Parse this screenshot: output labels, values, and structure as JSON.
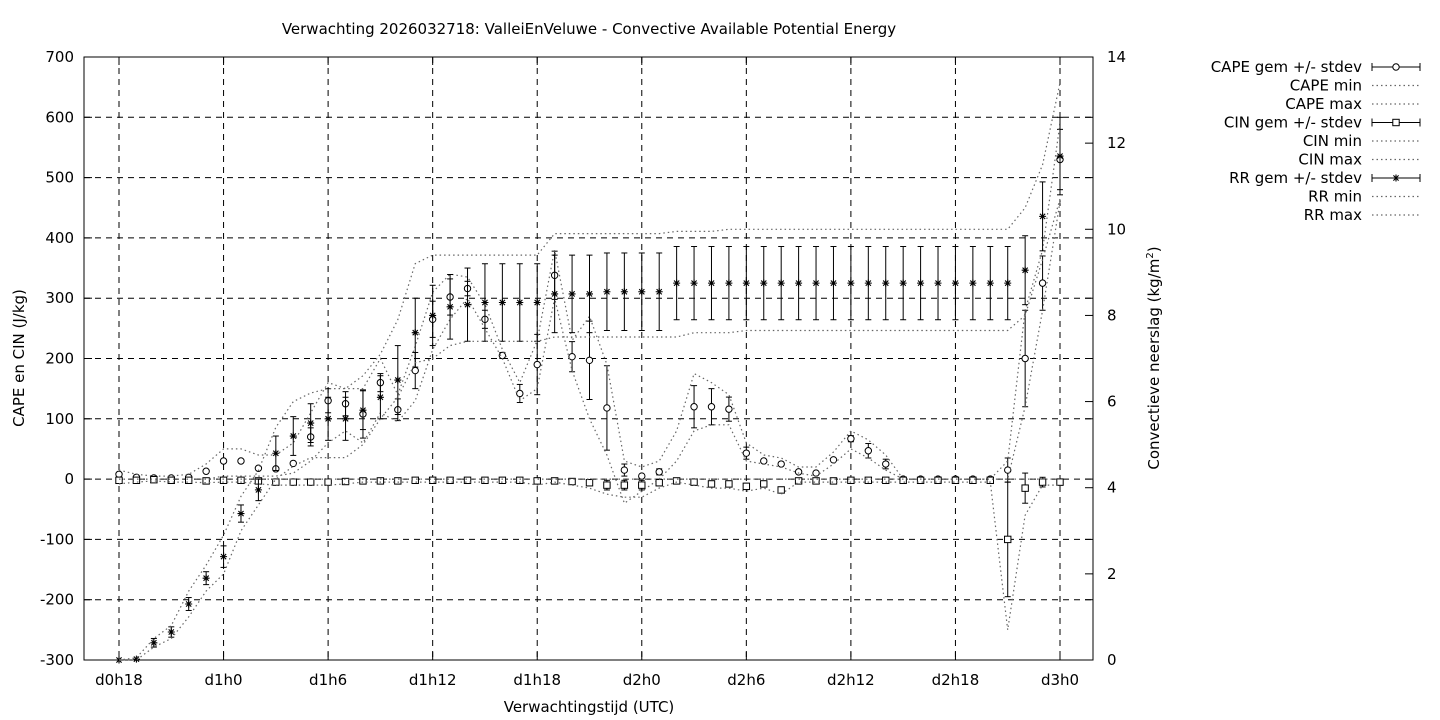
{
  "chart_data": {
    "type": "line",
    "title": "Verwachting 2026032718: ValleiEnVeluwe - Convective Available Potential Energy",
    "xlabel": "Verwachtingstijd (UTC)",
    "ylabel": "CAPE en CIN (J/kg)",
    "y2label": "Convectieve neerslag (kg/m",
    "y2label_sup": "2",
    "y2label_end": ")",
    "xlim": [
      0,
      57
    ],
    "ylim": [
      -300,
      700
    ],
    "y2lim": [
      0,
      14
    ],
    "grid": true,
    "legend_position": "outside-right",
    "x_ticks": [
      {
        "x": 0,
        "label": "d0h18"
      },
      {
        "x": 6,
        "label": "d1h0"
      },
      {
        "x": 12,
        "label": "d1h6"
      },
      {
        "x": 18,
        "label": "d1h12"
      },
      {
        "x": 24,
        "label": "d1h18"
      },
      {
        "x": 30,
        "label": "d2h0"
      },
      {
        "x": 36,
        "label": "d2h6"
      },
      {
        "x": 42,
        "label": "d2h12"
      },
      {
        "x": 48,
        "label": "d2h18"
      },
      {
        "x": 54,
        "label": "d3h0"
      }
    ],
    "y_ticks": [
      "-300",
      "-200",
      "-100",
      "0",
      "100",
      "200",
      "300",
      "400",
      "500",
      "600",
      "700"
    ],
    "y2_ticks": [
      "0",
      "2",
      "4",
      "6",
      "8",
      "10",
      "12",
      "14"
    ],
    "x": [
      0,
      1,
      2,
      3,
      4,
      5,
      6,
      7,
      8,
      9,
      10,
      11,
      12,
      13,
      14,
      15,
      16,
      17,
      18,
      19,
      20,
      21,
      22,
      23,
      24,
      25,
      26,
      27,
      28,
      29,
      30,
      31,
      32,
      33,
      34,
      35,
      36,
      37,
      38,
      39,
      40,
      41,
      42,
      43,
      44,
      45,
      46,
      47,
      48,
      49,
      50,
      51,
      52,
      53,
      54
    ],
    "series": [
      {
        "name": "CAPE gem +/- stdev",
        "marker": "circle",
        "axis": "y",
        "values": [
          8,
          3,
          2,
          2,
          3,
          13,
          30,
          30,
          18,
          17,
          26,
          70,
          130,
          125,
          108,
          160,
          115,
          180,
          265,
          302,
          316,
          265,
          205,
          142,
          190,
          338,
          203,
          197,
          118,
          15,
          5,
          12,
          null,
          120,
          120,
          116,
          43,
          30,
          25,
          12,
          10,
          32,
          67,
          47,
          25,
          0,
          0,
          0,
          0,
          0,
          0,
          15,
          200,
          325,
          530
        ],
        "stdev": [
          0,
          0,
          0,
          0,
          0,
          0,
          0,
          0,
          0,
          0,
          0,
          15,
          20,
          20,
          40,
          15,
          18,
          30,
          30,
          30,
          12,
          15,
          5,
          15,
          50,
          40,
          25,
          65,
          70,
          10,
          0,
          5,
          null,
          35,
          30,
          20,
          10,
          0,
          0,
          0,
          0,
          0,
          5,
          12,
          8,
          0,
          0,
          0,
          0,
          0,
          0,
          20,
          80,
          45,
          50
        ]
      },
      {
        "name": "CAPE min",
        "style": "dotted",
        "axis": "y",
        "values": [
          0,
          0,
          0,
          0,
          0,
          0,
          5,
          5,
          5,
          5,
          10,
          30,
          60,
          80,
          60,
          110,
          95,
          130,
          215,
          265,
          300,
          250,
          200,
          130,
          150,
          300,
          180,
          100,
          40,
          -40,
          -20,
          0,
          30,
          80,
          90,
          90,
          30,
          25,
          20,
          10,
          5,
          25,
          50,
          35,
          15,
          0,
          0,
          0,
          0,
          0,
          0,
          0,
          120,
          280,
          460
        ]
      },
      {
        "name": "CAPE max",
        "style": "dotted",
        "axis": "y",
        "values": [
          15,
          8,
          5,
          5,
          8,
          25,
          50,
          50,
          40,
          40,
          60,
          110,
          160,
          150,
          150,
          200,
          140,
          220,
          310,
          340,
          335,
          290,
          215,
          160,
          230,
          380,
          230,
          270,
          190,
          30,
          20,
          30,
          80,
          175,
          160,
          140,
          60,
          40,
          35,
          20,
          20,
          45,
          80,
          65,
          40,
          0,
          0,
          0,
          0,
          0,
          0,
          30,
          280,
          380,
          590
        ]
      },
      {
        "name": "CIN gem +/- stdev",
        "marker": "square",
        "axis": "y",
        "values": [
          -2,
          -2,
          -1,
          -2,
          -2,
          -3,
          -2,
          -2,
          -3,
          -5,
          -5,
          -5,
          -5,
          -4,
          -3,
          -3,
          -3,
          -2,
          -2,
          -2,
          -2,
          -2,
          -2,
          -2,
          -3,
          -3,
          -4,
          -6,
          -10,
          -10,
          -10,
          -6,
          -3,
          -5,
          -8,
          -8,
          -12,
          -8,
          -18,
          -3,
          -3,
          -3,
          -2,
          -2,
          -2,
          -2,
          -2,
          -2,
          -2,
          -2,
          -2,
          -100,
          -15,
          -5,
          -5
        ],
        "stdev": [
          0,
          0,
          0,
          0,
          0,
          0,
          0,
          0,
          0,
          0,
          0,
          0,
          0,
          0,
          0,
          0,
          0,
          0,
          0,
          0,
          0,
          0,
          0,
          0,
          5,
          0,
          0,
          5,
          8,
          8,
          8,
          5,
          0,
          5,
          5,
          5,
          5,
          5,
          5,
          0,
          0,
          0,
          0,
          0,
          0,
          0,
          0,
          0,
          0,
          0,
          0,
          95,
          25,
          8,
          5
        ]
      },
      {
        "name": "CIN min",
        "style": "dotted",
        "axis": "y",
        "values": [
          -8,
          -5,
          -3,
          -5,
          -5,
          -6,
          -5,
          -5,
          -8,
          -10,
          -10,
          -10,
          -10,
          -8,
          -5,
          -5,
          -5,
          -5,
          -5,
          -5,
          -5,
          -5,
          -5,
          -5,
          -10,
          -5,
          -10,
          -15,
          -25,
          -30,
          -30,
          -15,
          -5,
          -10,
          -15,
          -15,
          -20,
          -15,
          -25,
          -5,
          -5,
          -5,
          -5,
          -5,
          -5,
          -5,
          -5,
          -5,
          -5,
          -5,
          -5,
          -250,
          -60,
          -10,
          -10
        ]
      },
      {
        "name": "CIN max",
        "style": "dotted",
        "axis": "y",
        "values": [
          0,
          0,
          0,
          0,
          0,
          0,
          0,
          0,
          0,
          0,
          0,
          0,
          0,
          0,
          0,
          0,
          0,
          0,
          0,
          0,
          0,
          0,
          0,
          0,
          0,
          0,
          0,
          0,
          0,
          0,
          0,
          0,
          0,
          0,
          0,
          0,
          0,
          0,
          0,
          0,
          0,
          0,
          0,
          0,
          0,
          0,
          0,
          0,
          0,
          0,
          0,
          0,
          0,
          0,
          0
        ]
      },
      {
        "name": "RR gem +/- stdev",
        "marker": "star",
        "axis": "y2",
        "values": [
          0,
          0.02,
          0.4,
          0.65,
          1.3,
          1.9,
          2.4,
          3.4,
          3.95,
          4.8,
          5.2,
          5.5,
          5.6,
          5.6,
          5.8,
          6.1,
          6.5,
          7.6,
          8.0,
          8.2,
          8.25,
          8.3,
          8.3,
          8.3,
          8.3,
          8.5,
          8.5,
          8.5,
          8.55,
          8.55,
          8.55,
          8.55,
          8.75,
          8.75,
          8.75,
          8.75,
          8.75,
          8.75,
          8.75,
          8.75,
          8.75,
          8.75,
          8.75,
          8.75,
          8.75,
          8.75,
          8.75,
          8.75,
          8.75,
          8.75,
          8.75,
          8.75,
          9.05,
          10.3,
          11.7
        ],
        "stdev": [
          0,
          0,
          0.1,
          0.12,
          0.15,
          0.15,
          0.25,
          0.2,
          0.25,
          0.4,
          0.45,
          0.45,
          0.5,
          0.5,
          0.45,
          0.5,
          0.8,
          0.8,
          0.7,
          0.75,
          0.85,
          0.9,
          0.9,
          0.9,
          0.9,
          0.9,
          0.9,
          0.9,
          0.9,
          0.9,
          0.9,
          0.9,
          0.85,
          0.85,
          0.85,
          0.85,
          0.85,
          0.85,
          0.85,
          0.85,
          0.85,
          0.85,
          0.85,
          0.85,
          0.85,
          0.85,
          0.85,
          0.85,
          0.85,
          0.85,
          0.85,
          0.85,
          0.8,
          0.8,
          0.9
        ]
      },
      {
        "name": "RR min",
        "style": "dotted",
        "axis": "y2",
        "values": [
          0,
          0,
          0.3,
          0.5,
          1.0,
          1.6,
          2.0,
          3.0,
          3.6,
          4.2,
          4.5,
          4.7,
          4.7,
          4.7,
          5.0,
          5.6,
          6.1,
          6.9,
          7.0,
          7.3,
          7.4,
          7.4,
          7.4,
          7.4,
          7.4,
          7.5,
          7.5,
          7.5,
          7.5,
          7.5,
          7.5,
          7.5,
          7.5,
          7.6,
          7.6,
          7.6,
          7.65,
          7.65,
          7.65,
          7.65,
          7.65,
          7.65,
          7.65,
          7.65,
          7.65,
          7.65,
          7.65,
          7.65,
          7.65,
          7.65,
          7.65,
          7.65,
          8.0,
          9.3,
          10.7
        ]
      },
      {
        "name": "RR max",
        "style": "dotted",
        "axis": "y2",
        "values": [
          0,
          0.05,
          0.5,
          0.8,
          1.6,
          2.2,
          2.9,
          3.8,
          4.4,
          5.4,
          6.0,
          6.2,
          6.3,
          6.3,
          6.6,
          7.1,
          7.9,
          9.2,
          9.4,
          9.4,
          9.4,
          9.4,
          9.4,
          9.4,
          9.4,
          9.9,
          9.9,
          9.9,
          9.9,
          9.9,
          9.9,
          9.9,
          9.95,
          9.95,
          9.95,
          10.0,
          10.0,
          10.0,
          10.0,
          10.0,
          10.0,
          10.0,
          10.0,
          10.0,
          10.0,
          10.0,
          10.0,
          10.0,
          10.0,
          10.0,
          10.0,
          10.0,
          10.5,
          11.5,
          13.4
        ]
      }
    ]
  }
}
